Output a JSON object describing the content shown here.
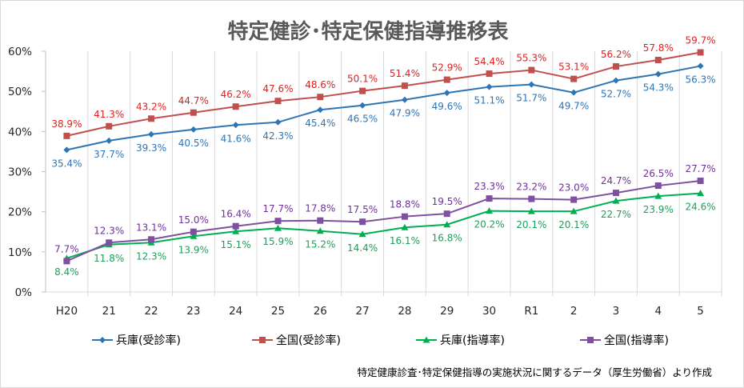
{
  "chart_data": {
    "type": "line",
    "title": "特定健診･特定保健指導推移表",
    "source_note": "特定健康診査･特定保健指導の実施状況に関するデータ（厚生労働省）より作成",
    "xlabel": "",
    "ylabel": "",
    "ylim": [
      0,
      60
    ],
    "y_ticks": [
      "0%",
      "10%",
      "20%",
      "30%",
      "40%",
      "50%",
      "60%"
    ],
    "grid": {
      "vertical": true,
      "horizontal": false
    },
    "legend_position": "bottom",
    "categories": [
      "H20",
      "21",
      "22",
      "23",
      "24",
      "25",
      "26",
      "27",
      "28",
      "29",
      "30",
      "R1",
      "2",
      "3",
      "4",
      "5"
    ],
    "series": [
      {
        "name": "兵庫(受診率)",
        "color": "#2E75B6",
        "marker": "diamond",
        "label_position": "below",
        "values": [
          35.4,
          37.7,
          39.3,
          40.5,
          41.6,
          42.3,
          45.4,
          46.5,
          47.9,
          49.6,
          51.1,
          51.7,
          49.7,
          52.7,
          54.3,
          56.3
        ]
      },
      {
        "name": "全国(受診率)",
        "color": "#C0504D",
        "marker": "square",
        "label_position": "above",
        "label_color": "#E02020",
        "values": [
          38.9,
          41.3,
          43.2,
          44.7,
          46.2,
          47.6,
          48.6,
          50.1,
          51.4,
          52.9,
          54.4,
          55.3,
          53.1,
          56.2,
          57.8,
          59.7
        ]
      },
      {
        "name": "兵庫(指導率)",
        "color": "#00B050",
        "marker": "triangle",
        "label_position": "below",
        "label_color": "#1E9E5A",
        "values": [
          8.4,
          11.8,
          12.3,
          13.9,
          15.1,
          15.9,
          15.2,
          14.4,
          16.1,
          16.8,
          20.2,
          20.1,
          20.1,
          22.7,
          23.9,
          24.6
        ]
      },
      {
        "name": "全国(指導率)",
        "color": "#7F4FA0",
        "marker": "square",
        "label_position": "above",
        "label_color": "#7030A0",
        "values": [
          7.7,
          12.3,
          13.1,
          15.0,
          16.4,
          17.7,
          17.8,
          17.5,
          18.8,
          19.5,
          23.3,
          23.2,
          23.0,
          24.7,
          26.5,
          27.7
        ]
      }
    ]
  }
}
